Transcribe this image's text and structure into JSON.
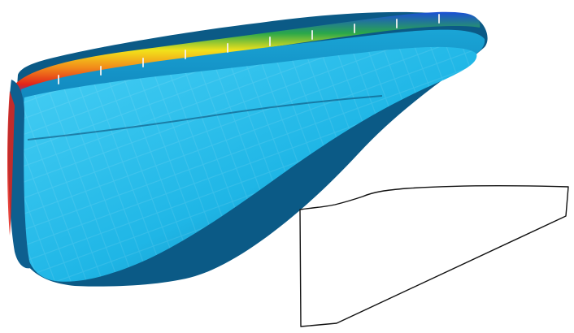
{
  "scene": {
    "subject": "bag-photo",
    "bag": {
      "colors": {
        "fabric_main": "#1fb6e6",
        "fabric_light": "#49d0f5",
        "fabric_dark": "#0f6f9f",
        "fabric_shadow": "#0b5a86",
        "stripe_red": "#e2231a",
        "stripe_orange": "#f28c1a",
        "stripe_yellow": "#f2e21a",
        "stripe_green": "#2aa84a",
        "stripe_blue": "#1a4fd6",
        "stitch": "#f2f2f2"
      }
    },
    "outline_template": {
      "stroke": "#111111",
      "fill": "#ffffff"
    }
  }
}
